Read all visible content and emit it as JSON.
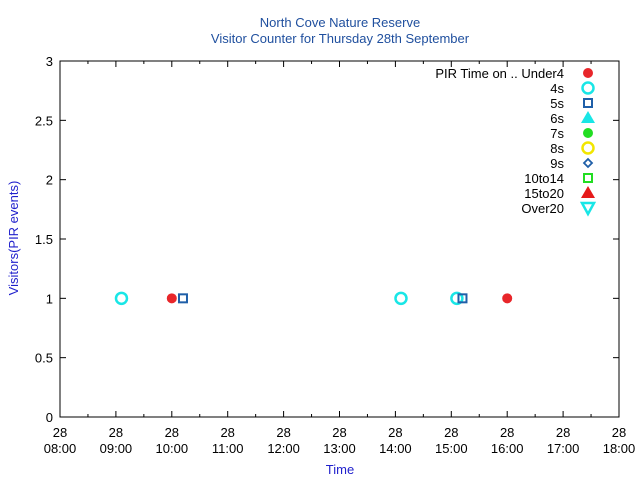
{
  "chart_data": {
    "type": "scatter",
    "title": "North Cove Nature Reserve",
    "subtitle": "Visitor Counter for Thursday 28th September",
    "xlabel": "Time",
    "ylabel": "Visitors(PIR events)",
    "xlim": [
      "08:00",
      "18:00"
    ],
    "ylim": [
      0,
      3
    ],
    "x_ticks": [
      {
        "day": "28",
        "time": "08:00"
      },
      {
        "day": "28",
        "time": "09:00"
      },
      {
        "day": "28",
        "time": "10:00"
      },
      {
        "day": "28",
        "time": "11:00"
      },
      {
        "day": "28",
        "time": "12:00"
      },
      {
        "day": "28",
        "time": "13:00"
      },
      {
        "day": "28",
        "time": "14:00"
      },
      {
        "day": "28",
        "time": "15:00"
      },
      {
        "day": "28",
        "time": "16:00"
      },
      {
        "day": "28",
        "time": "17:00"
      },
      {
        "day": "28",
        "time": "18:00"
      }
    ],
    "y_ticks": [
      "0",
      "0.5",
      "1",
      "1.5",
      "2",
      "2.5",
      "3"
    ],
    "legend_title": "PIR Time on ..",
    "legend_position": "top-right",
    "series": [
      {
        "name": "Under4",
        "marker": "filled-circle",
        "color": "#e8262a",
        "points": [
          {
            "x": "10:00",
            "y": 1
          },
          {
            "x": "16:00",
            "y": 1
          }
        ]
      },
      {
        "name": "4s",
        "marker": "open-circle",
        "color": "#19e6e6",
        "points": [
          {
            "x": "09:06",
            "y": 1
          },
          {
            "x": "14:06",
            "y": 1
          },
          {
            "x": "15:06",
            "y": 1
          }
        ]
      },
      {
        "name": "5s",
        "marker": "open-square",
        "color": "#1f5fa8",
        "points": [
          {
            "x": "10:12",
            "y": 1
          },
          {
            "x": "15:12",
            "y": 1
          }
        ]
      },
      {
        "name": "6s",
        "marker": "filled-triangle-up",
        "color": "#19e6e6",
        "points": []
      },
      {
        "name": "7s",
        "marker": "filled-circle",
        "color": "#22dd22",
        "points": []
      },
      {
        "name": "8s",
        "marker": "open-circle",
        "color": "#f2e600",
        "points": []
      },
      {
        "name": "9s",
        "marker": "open-diamond",
        "color": "#1f5fa8",
        "points": []
      },
      {
        "name": "10to14",
        "marker": "open-square",
        "color": "#22dd22",
        "points": []
      },
      {
        "name": "15to20",
        "marker": "filled-triangle-up",
        "color": "#e61a1a",
        "points": []
      },
      {
        "name": "Over20",
        "marker": "open-triangle-down",
        "color": "#19e6e6",
        "points": []
      }
    ],
    "grid": false
  }
}
